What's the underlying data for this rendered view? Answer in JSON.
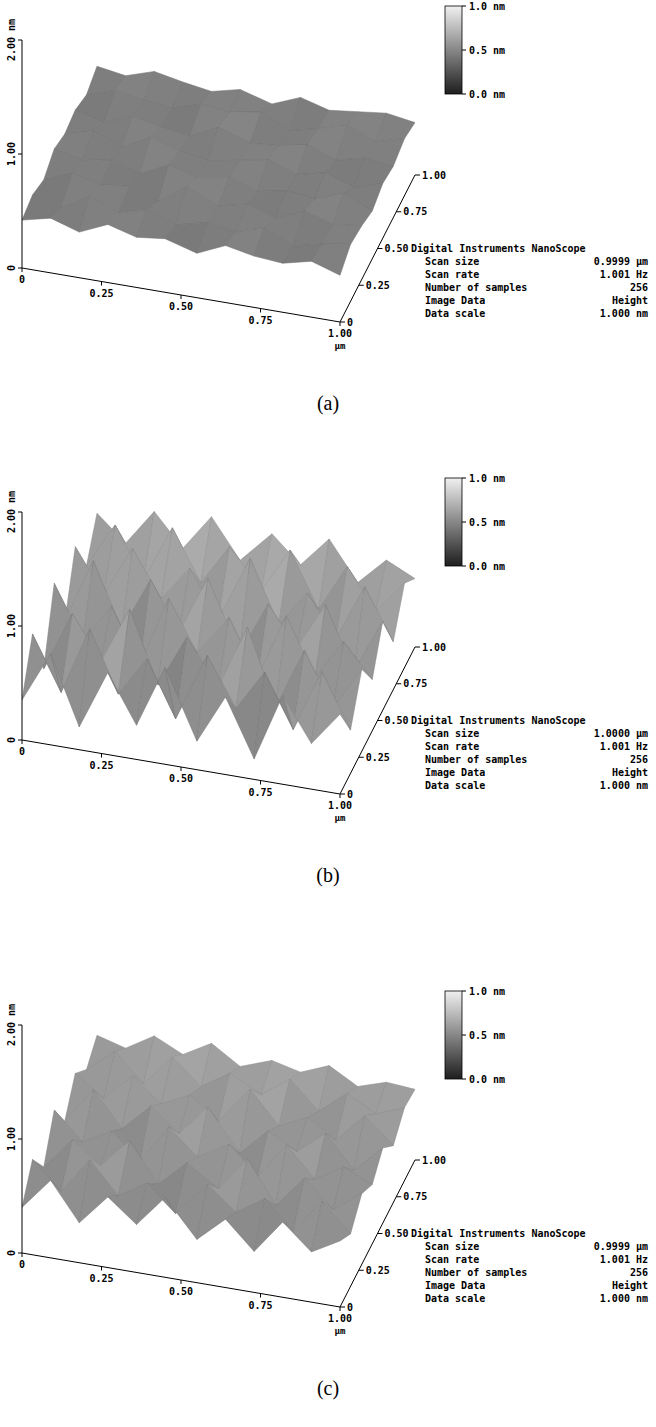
{
  "chart_data": [
    {
      "type": "surface",
      "label": "(a)",
      "xlabel": "µm",
      "xlim": [
        0,
        1
      ],
      "xticks": [
        0,
        {
          "value": 0.25,
          "label": "0.25"
        },
        {
          "value": 0.5,
          "label": "0.50"
        },
        {
          "value": 0.75,
          "label": "0.75"
        },
        {
          "value": 1,
          "label": "1.00"
        }
      ],
      "ylim": [
        0,
        1
      ],
      "yticks": [
        0,
        {
          "value": 0.25,
          "label": "0.25"
        },
        {
          "value": 0.5,
          "label": "0.50"
        },
        {
          "value": 0.75,
          "label": "0.75"
        },
        {
          "value": 1,
          "label": "1.00"
        }
      ],
      "zlim": [
        0,
        2
      ],
      "zticks": [
        0,
        {
          "value": 1,
          "label": "1.00"
        },
        {
          "value": 2,
          "label": "2.00 nm"
        }
      ],
      "colorbar": {
        "range": [
          0,
          1
        ],
        "ticks": [
          {
            "value": 0,
            "label": "0.0 nm"
          },
          {
            "value": 0.5,
            "label": "0.5 nm"
          },
          {
            "value": 1,
            "label": "1.0 nm"
          }
        ]
      },
      "info_title": "Digital Instruments NanoScope",
      "info": [
        [
          "Scan size",
          "0.9999 µm"
        ],
        [
          "Scan rate",
          "1.001 Hz"
        ],
        [
          "Number of samples",
          "256"
        ],
        [
          "Image Data",
          "Height"
        ],
        [
          "Data scale",
          "1.000 nm"
        ]
      ],
      "x": [
        0,
        0.09,
        0.18,
        0.27,
        0.36,
        0.45,
        0.55,
        0.64,
        0.73,
        0.82,
        0.91,
        1
      ],
      "y": [
        0,
        0.14,
        0.29,
        0.43,
        0.57,
        0.71,
        0.86,
        1
      ],
      "z": [
        [
          0.42,
          0.48,
          0.4,
          0.51,
          0.44,
          0.47,
          0.39,
          0.5,
          0.45,
          0.43,
          0.49,
          0.41
        ],
        [
          0.46,
          0.39,
          0.53,
          0.43,
          0.5,
          0.41,
          0.48,
          0.44,
          0.52,
          0.4,
          0.46,
          0.5
        ],
        [
          0.4,
          0.5,
          0.44,
          0.47,
          0.38,
          0.55,
          0.43,
          0.49,
          0.41,
          0.51,
          0.44,
          0.47
        ],
        [
          0.49,
          0.43,
          0.48,
          0.4,
          0.52,
          0.45,
          0.5,
          0.42,
          0.47,
          0.44,
          0.53,
          0.42
        ],
        [
          0.44,
          0.51,
          0.41,
          0.54,
          0.46,
          0.42,
          0.47,
          0.52,
          0.43,
          0.49,
          0.4,
          0.48
        ],
        [
          0.47,
          0.4,
          0.5,
          0.45,
          0.41,
          0.53,
          0.44,
          0.46,
          0.51,
          0.42,
          0.48,
          0.45
        ],
        [
          0.41,
          0.49,
          0.45,
          0.42,
          0.5,
          0.47,
          0.52,
          0.4,
          0.46,
          0.53,
          0.43,
          0.5
        ],
        [
          0.48,
          0.44,
          0.52,
          0.47,
          0.43,
          0.49,
          0.41,
          0.51,
          0.44,
          0.47,
          0.5,
          0.46
        ]
      ]
    },
    {
      "type": "surface",
      "label": "(b)",
      "xlabel": "µm",
      "xlim": [
        0,
        1
      ],
      "xticks": [
        0,
        {
          "value": 0.25,
          "label": "0.25"
        },
        {
          "value": 0.5,
          "label": "0.50"
        },
        {
          "value": 0.75,
          "label": "0.75"
        },
        {
          "value": 1,
          "label": "1.00"
        }
      ],
      "ylim": [
        0,
        1
      ],
      "yticks": [
        0,
        {
          "value": 0.25,
          "label": "0.25"
        },
        {
          "value": 0.5,
          "label": "0.50"
        },
        {
          "value": 0.75,
          "label": "0.75"
        },
        {
          "value": 1,
          "label": "1.00"
        }
      ],
      "zlim": [
        0,
        2
      ],
      "zticks": [
        0,
        {
          "value": 1,
          "label": "1.00"
        },
        {
          "value": 2,
          "label": "2.00 nm"
        }
      ],
      "colorbar": {
        "range": [
          0,
          1
        ],
        "ticks": [
          {
            "value": 0,
            "label": "0.0 nm"
          },
          {
            "value": 0.5,
            "label": "0.5 nm"
          },
          {
            "value": 1,
            "label": "1.0 nm"
          }
        ]
      },
      "info_title": "Digital Instruments NanoScope",
      "info": [
        [
          "Scan size",
          "1.0000 µm"
        ],
        [
          "Scan rate",
          "1.001 Hz"
        ],
        [
          "Number of samples",
          "256"
        ],
        [
          "Image Data",
          "Height"
        ],
        [
          "Data scale",
          "1.000 nm"
        ]
      ],
      "x": [
        0,
        0.09,
        0.18,
        0.27,
        0.36,
        0.45,
        0.55,
        0.64,
        0.73,
        0.82,
        0.91,
        1
      ],
      "y": [
        0,
        0.14,
        0.29,
        0.43,
        0.57,
        0.71,
        0.86,
        1
      ],
      "z": [
        [
          0.35,
          0.8,
          0.2,
          0.72,
          0.3,
          0.85,
          0.25,
          0.68,
          0.18,
          0.78,
          0.4,
          0.7
        ],
        [
          0.75,
          0.28,
          0.88,
          0.35,
          0.7,
          0.22,
          0.82,
          0.4,
          0.76,
          0.3,
          0.85,
          0.38
        ],
        [
          0.25,
          0.78,
          0.4,
          0.9,
          0.28,
          0.74,
          0.35,
          0.92,
          0.26,
          0.8,
          0.33,
          0.72
        ],
        [
          0.82,
          0.36,
          0.7,
          0.24,
          0.86,
          0.42,
          0.78,
          0.3,
          0.88,
          0.38,
          0.74,
          0.45
        ],
        [
          0.3,
          0.88,
          0.32,
          0.8,
          0.38,
          0.9,
          0.28,
          0.76,
          0.42,
          0.84,
          0.3,
          0.78
        ],
        [
          0.78,
          0.4,
          0.85,
          0.45,
          0.76,
          0.35,
          0.94,
          0.4,
          0.72,
          0.36,
          0.86,
          0.42
        ],
        [
          0.42,
          0.82,
          0.38,
          0.88,
          0.44,
          0.8,
          0.46,
          0.86,
          0.38,
          0.8,
          0.45,
          0.74
        ],
        [
          0.7,
          0.48,
          0.8,
          0.52,
          0.84,
          0.5,
          0.78,
          0.55,
          0.82,
          0.48,
          0.72,
          0.6
        ]
      ]
    },
    {
      "type": "surface",
      "label": "(c)",
      "xlabel": "µm",
      "xlim": [
        0,
        1
      ],
      "xticks": [
        0,
        {
          "value": 0.25,
          "label": "0.25"
        },
        {
          "value": 0.5,
          "label": "0.50"
        },
        {
          "value": 0.75,
          "label": "0.75"
        },
        {
          "value": 1,
          "label": "1.00"
        }
      ],
      "ylim": [
        0,
        1
      ],
      "yticks": [
        0,
        {
          "value": 0.25,
          "label": "0.25"
        },
        {
          "value": 0.5,
          "label": "0.50"
        },
        {
          "value": 0.75,
          "label": "0.75"
        },
        {
          "value": 1,
          "label": "1.00"
        }
      ],
      "zlim": [
        0,
        2
      ],
      "zticks": [
        0,
        {
          "value": 1,
          "label": "1.00"
        },
        {
          "value": 2,
          "label": "2.00 nm"
        }
      ],
      "colorbar": {
        "range": [
          0,
          1
        ],
        "ticks": [
          {
            "value": 0,
            "label": "0.0 nm"
          },
          {
            "value": 0.5,
            "label": "0.5 nm"
          },
          {
            "value": 1,
            "label": "1.0 nm"
          }
        ]
      },
      "info_title": "Digital Instruments NanoScope",
      "info": [
        [
          "Scan size",
          "0.9999 µm"
        ],
        [
          "Scan rate",
          "1.001 Hz"
        ],
        [
          "Number of samples",
          "256"
        ],
        [
          "Image Data",
          "Height"
        ],
        [
          "Data scale",
          "1.000 nm"
        ]
      ],
      "x": [
        0,
        0.09,
        0.18,
        0.27,
        0.36,
        0.45,
        0.55,
        0.64,
        0.73,
        0.82,
        0.91,
        1
      ],
      "y": [
        0,
        0.14,
        0.29,
        0.43,
        0.57,
        0.71,
        0.86,
        1
      ],
      "z": [
        [
          0.4,
          0.68,
          0.35,
          0.62,
          0.42,
          0.7,
          0.38,
          0.6,
          0.36,
          0.66,
          0.44,
          0.58
        ],
        [
          0.64,
          0.4,
          0.72,
          0.45,
          0.6,
          0.38,
          0.68,
          0.48,
          0.64,
          0.4,
          0.7,
          0.46
        ],
        [
          0.38,
          0.66,
          0.48,
          0.74,
          0.4,
          0.63,
          0.45,
          0.76,
          0.39,
          0.67,
          0.44,
          0.62
        ],
        [
          0.7,
          0.46,
          0.6,
          0.38,
          0.72,
          0.5,
          0.66,
          0.42,
          0.74,
          0.48,
          0.63,
          0.52
        ],
        [
          0.42,
          0.74,
          0.44,
          0.68,
          0.48,
          0.76,
          0.4,
          0.64,
          0.5,
          0.7,
          0.42,
          0.66
        ],
        [
          0.66,
          0.48,
          0.72,
          0.52,
          0.64,
          0.45,
          0.78,
          0.5,
          0.62,
          0.46,
          0.72,
          0.5
        ],
        [
          0.5,
          0.7,
          0.46,
          0.74,
          0.52,
          0.68,
          0.54,
          0.72,
          0.48,
          0.68,
          0.54,
          0.64
        ],
        [
          0.62,
          0.55,
          0.7,
          0.58,
          0.72,
          0.56,
          0.66,
          0.6,
          0.7,
          0.56,
          0.64,
          0.62
        ]
      ]
    }
  ]
}
